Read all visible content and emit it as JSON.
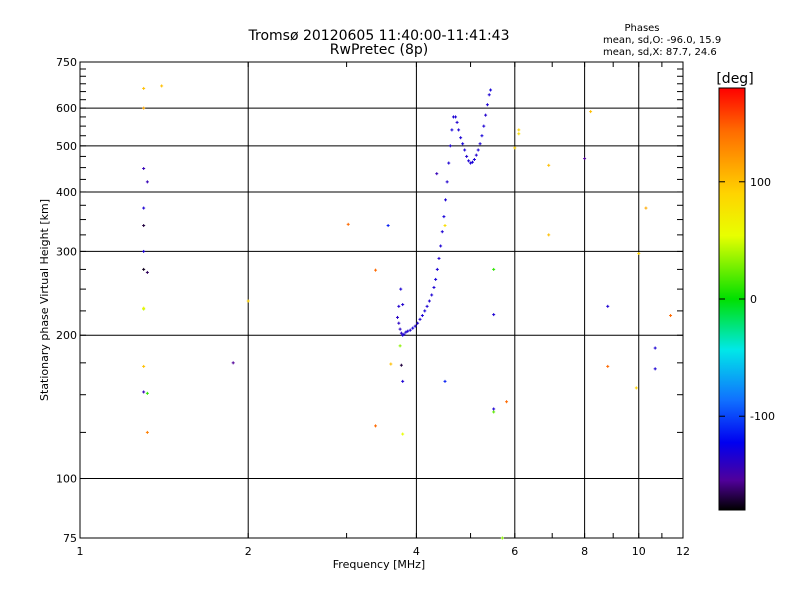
{
  "chart_data": {
    "type": "scatter",
    "title": "Tromsø 20120605 11:40:00-11:41:43",
    "subtitle": "RwPretec (8p)",
    "xlabel": "Frequency [MHz]",
    "ylabel": "Stationary phase Virtual Height [km]",
    "x_scale": "log",
    "y_scale": "log",
    "xlim": [
      1,
      12
    ],
    "ylim": [
      75,
      750
    ],
    "x_ticks": [
      1,
      2,
      4,
      6,
      8,
      10,
      12
    ],
    "x_tick_labels": [
      "1",
      "2",
      "4",
      "6",
      "8",
      "10",
      "12"
    ],
    "x_grid": [
      2,
      4,
      6,
      8,
      10
    ],
    "y_ticks": [
      75,
      100,
      200,
      300,
      400,
      500,
      600,
      750
    ],
    "y_tick_labels": [
      "75",
      "100",
      "200",
      "300",
      "400",
      "500",
      "600",
      "750"
    ],
    "y_grid": [
      100,
      200,
      300,
      400,
      500,
      600
    ],
    "grid": true,
    "phases_header": "Phases",
    "phase_stats": [
      "mean, sd,O: -96.0, 15.9",
      "mean, sd,X:  87.7, 24.6"
    ],
    "colorbar": {
      "label": "[deg]",
      "min": -180,
      "max": 180,
      "ticks": [
        100,
        0,
        -100
      ],
      "tick_labels": [
        "100",
        "0",
        "-100"
      ]
    },
    "trace_points": [
      [
        3.78,
        200,
        -110
      ],
      [
        3.8,
        201,
        -110
      ],
      [
        3.83,
        203,
        -112
      ],
      [
        3.86,
        204,
        -110
      ],
      [
        3.9,
        205,
        -110
      ],
      [
        3.94,
        207,
        -108
      ],
      [
        3.98,
        209,
        -110
      ],
      [
        4.02,
        212,
        -112
      ],
      [
        4.06,
        216,
        -110
      ],
      [
        4.1,
        220,
        -110
      ],
      [
        4.14,
        225,
        -108
      ],
      [
        4.18,
        230,
        -110
      ],
      [
        4.22,
        236,
        -112
      ],
      [
        4.26,
        243,
        -110
      ],
      [
        4.3,
        252,
        -110
      ],
      [
        4.33,
        262,
        -108
      ],
      [
        4.36,
        275,
        -110
      ],
      [
        4.39,
        290,
        -112
      ],
      [
        4.42,
        308,
        -110
      ],
      [
        4.45,
        330,
        -110
      ],
      [
        4.48,
        355,
        -108
      ],
      [
        4.51,
        385,
        -110
      ],
      [
        4.54,
        420,
        -112
      ],
      [
        4.57,
        460,
        -110
      ],
      [
        4.6,
        500,
        -110
      ],
      [
        4.63,
        540,
        -108
      ],
      [
        4.66,
        575,
        -110
      ],
      [
        4.7,
        575,
        -110
      ],
      [
        4.73,
        560,
        -112
      ],
      [
        4.76,
        540,
        -110
      ],
      [
        4.8,
        520,
        -110
      ],
      [
        4.84,
        505,
        -108
      ],
      [
        4.88,
        490,
        -110
      ],
      [
        4.92,
        475,
        -112
      ],
      [
        4.96,
        465,
        -110
      ],
      [
        5.0,
        460,
        -110
      ],
      [
        5.04,
        462,
        -108
      ],
      [
        5.08,
        468,
        -110
      ],
      [
        5.12,
        478,
        -112
      ],
      [
        5.16,
        490,
        -110
      ],
      [
        5.2,
        505,
        -110
      ],
      [
        5.24,
        525,
        -108
      ],
      [
        5.28,
        550,
        -110
      ],
      [
        5.32,
        580,
        -112
      ],
      [
        5.36,
        610,
        -110
      ],
      [
        5.4,
        640,
        -110
      ],
      [
        5.43,
        655,
        -108
      ],
      [
        3.7,
        218,
        -115
      ],
      [
        3.72,
        212,
        -115
      ],
      [
        3.74,
        206,
        -115
      ],
      [
        3.76,
        202,
        -115
      ],
      [
        3.72,
        230,
        -112
      ],
      [
        3.78,
        232,
        -112
      ],
      [
        3.75,
        250,
        -110
      ]
    ],
    "scatter_points": [
      [
        1.3,
        660,
        110
      ],
      [
        1.4,
        668,
        110
      ],
      [
        1.3,
        600,
        120
      ],
      [
        1.3,
        448,
        -120
      ],
      [
        1.32,
        420,
        -120
      ],
      [
        1.3,
        370,
        -110
      ],
      [
        1.3,
        340,
        -160
      ],
      [
        1.3,
        300,
        -110
      ],
      [
        1.3,
        275,
        -170
      ],
      [
        1.32,
        271,
        -150
      ],
      [
        1.3,
        227,
        40
      ],
      [
        1.3,
        228,
        60
      ],
      [
        1.3,
        172,
        110
      ],
      [
        1.3,
        152,
        -120
      ],
      [
        1.32,
        151,
        10
      ],
      [
        1.32,
        125,
        140
      ],
      [
        1.88,
        175,
        -130
      ],
      [
        2.0,
        236,
        100
      ],
      [
        3.02,
        342,
        150
      ],
      [
        3.38,
        274,
        150
      ],
      [
        3.38,
        129,
        150
      ],
      [
        3.56,
        340,
        -90
      ],
      [
        3.6,
        174,
        110
      ],
      [
        3.74,
        190,
        30
      ],
      [
        3.76,
        173,
        -160
      ],
      [
        3.78,
        160,
        -110
      ],
      [
        3.78,
        124,
        50
      ],
      [
        4.5,
        160,
        -90
      ],
      [
        4.5,
        340,
        90
      ],
      [
        4.35,
        437,
        -120
      ],
      [
        5.5,
        275,
        10
      ],
      [
        5.5,
        221,
        -110
      ],
      [
        5.5,
        140,
        -110
      ],
      [
        5.5,
        138,
        20
      ],
      [
        5.7,
        75,
        30
      ],
      [
        5.8,
        145,
        150
      ],
      [
        6.0,
        495,
        100
      ],
      [
        6.1,
        540,
        100
      ],
      [
        6.1,
        530,
        90
      ],
      [
        6.9,
        455,
        110
      ],
      [
        6.9,
        325,
        110
      ],
      [
        8.0,
        470,
        -130
      ],
      [
        8.2,
        590,
        110
      ],
      [
        8.8,
        172,
        150
      ],
      [
        8.8,
        230,
        -110
      ],
      [
        9.9,
        155,
        100
      ],
      [
        10.0,
        297,
        100
      ],
      [
        10.3,
        370,
        120
      ],
      [
        10.7,
        188,
        -110
      ],
      [
        10.7,
        170,
        -110
      ],
      [
        11.4,
        220,
        150
      ]
    ]
  }
}
